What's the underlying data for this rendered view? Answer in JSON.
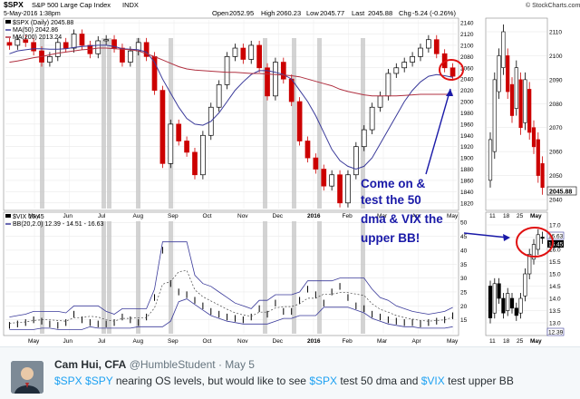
{
  "chart": {
    "symbol": "$SPX",
    "index_name": "S&P 500 Large Cap Index",
    "exchange": "INDX",
    "timestamp": "5-May-2016 1:38pm",
    "open_label": "Open",
    "open_value": "2052.95",
    "high_label": "High",
    "high_value": "2060.23",
    "low_label": "Low",
    "low_value": "2045.77",
    "last_label": "Last",
    "last_value": "2045.88",
    "chg_label": "Chg",
    "chg_value": "-5.24 (-0.26%)",
    "watermark": "© StockCharts.com",
    "legend_spx": "$SPX (Daily) 2045.88",
    "legend_ma50": "MA(50) 2042.86",
    "legend_ma200": "MA(200) 2013.24",
    "legend_vix": "$VIX 16.45",
    "legend_bb": "BB(20,2.0) 12.39 - 14.51 - 16.63",
    "last_price_box": "2045.88",
    "vix_box_1": "16.63",
    "vix_box_2": "16.45",
    "vix_box_3": "12.39",
    "annotation": [
      "Come on &",
      "test the 50",
      "dma & VIX the",
      "upper BB!"
    ],
    "month_labels": [
      "May",
      "Jun",
      "Jul",
      "Aug",
      "Sep",
      "Oct",
      "Nov",
      "Dec",
      "2016",
      "Feb",
      "Mar",
      "Apr",
      "May"
    ],
    "zoom_month_labels": [
      "11",
      "18",
      "25",
      "May"
    ],
    "colors": {
      "up_candle": "#000000",
      "down_candle": "#cc0000",
      "ma50": "#3a3a9a",
      "ma200": "#b03040",
      "annotation": "#1a1aa8",
      "circle": "#e01010"
    }
  },
  "chart_data": [
    {
      "type": "line",
      "title": "$SPX S&P 500 Large Cap Index INDX",
      "series": [
        {
          "name": "$SPX (Daily) 2045.88",
          "values": [
            2100,
            2110,
            2105,
            2090,
            2070,
            2080,
            2105,
            2095,
            2120,
            2100,
            2085,
            2108,
            2110,
            2095,
            2070,
            2090,
            2105,
            2080,
            2020,
            1890,
            1960,
            1930,
            1910,
            1870,
            1940,
            1990,
            2030,
            2080,
            2095,
            2075,
            2100,
            2060,
            2010,
            2070,
            2040,
            2000,
            1930,
            1900,
            1880,
            1850,
            1870,
            1820,
            1870,
            1920,
            1950,
            1990,
            2010,
            2050,
            2060,
            2070,
            2080,
            2095,
            2110,
            2085,
            2060,
            2045
          ]
        },
        {
          "name": "MA(50) 2042.86",
          "values": [
            2085,
            2090,
            2092,
            2094,
            2094,
            2093,
            2093,
            2094,
            2096,
            2098,
            2099,
            2100,
            2100,
            2098,
            2094,
            2093,
            2092,
            2088,
            2070,
            2040,
            2015,
            1990,
            1970,
            1960,
            1958,
            1965,
            1980,
            2000,
            2020,
            2035,
            2048,
            2055,
            2055,
            2052,
            2048,
            2040,
            2020,
            2000,
            1975,
            1945,
            1915,
            1895,
            1885,
            1880,
            1885,
            1900,
            1925,
            1950,
            1975,
            2000,
            2020,
            2035,
            2045,
            2048,
            2046,
            2043
          ]
        },
        {
          "name": "MA(200) 2013.24",
          "values": [
            2070,
            2072,
            2075,
            2078,
            2080,
            2083,
            2086,
            2088,
            2090,
            2092,
            2093,
            2095,
            2095,
            2094,
            2093,
            2092,
            2090,
            2085,
            2080,
            2074,
            2068,
            2062,
            2058,
            2056,
            2055,
            2054,
            2053,
            2052,
            2052,
            2051,
            2050,
            2050,
            2049,
            2048,
            2047,
            2046,
            2044,
            2040,
            2036,
            2032,
            2028,
            2022,
            2018,
            2015,
            2012,
            2010,
            2010,
            2010,
            2010,
            2011,
            2012,
            2013,
            2013,
            2013,
            2013,
            2013
          ]
        }
      ],
      "ylim": [
        1810,
        2145
      ],
      "yticks": [
        1820,
        1840,
        1860,
        1880,
        1900,
        1920,
        1940,
        1960,
        1980,
        2000,
        2020,
        2040,
        2060,
        2080,
        2100,
        2120,
        2140
      ],
      "annotations": [
        "Come on & test the 50 dma & VIX the upper BB!"
      ]
    },
    {
      "type": "line",
      "series": [
        {
          "name": "$VIX 16.45",
          "values": [
            13,
            13.5,
            14,
            15,
            14.5,
            13.5,
            13,
            14,
            17,
            15,
            14,
            13.5,
            13.5,
            14,
            16,
            15,
            14,
            16,
            23,
            40,
            28,
            25,
            24,
            22,
            20,
            18,
            17,
            16,
            15.5,
            15,
            16,
            19,
            17,
            21,
            18,
            18,
            22,
            26,
            24,
            21,
            25,
            27,
            23,
            20,
            19,
            17,
            16,
            15,
            14.5,
            14,
            14,
            13.5,
            14,
            14.5,
            15,
            16.45
          ]
        }
      ],
      "ylim": [
        10,
        53
      ],
      "yticks": [
        15,
        20,
        25,
        30,
        35,
        40,
        45,
        50
      ]
    }
  ]
}
